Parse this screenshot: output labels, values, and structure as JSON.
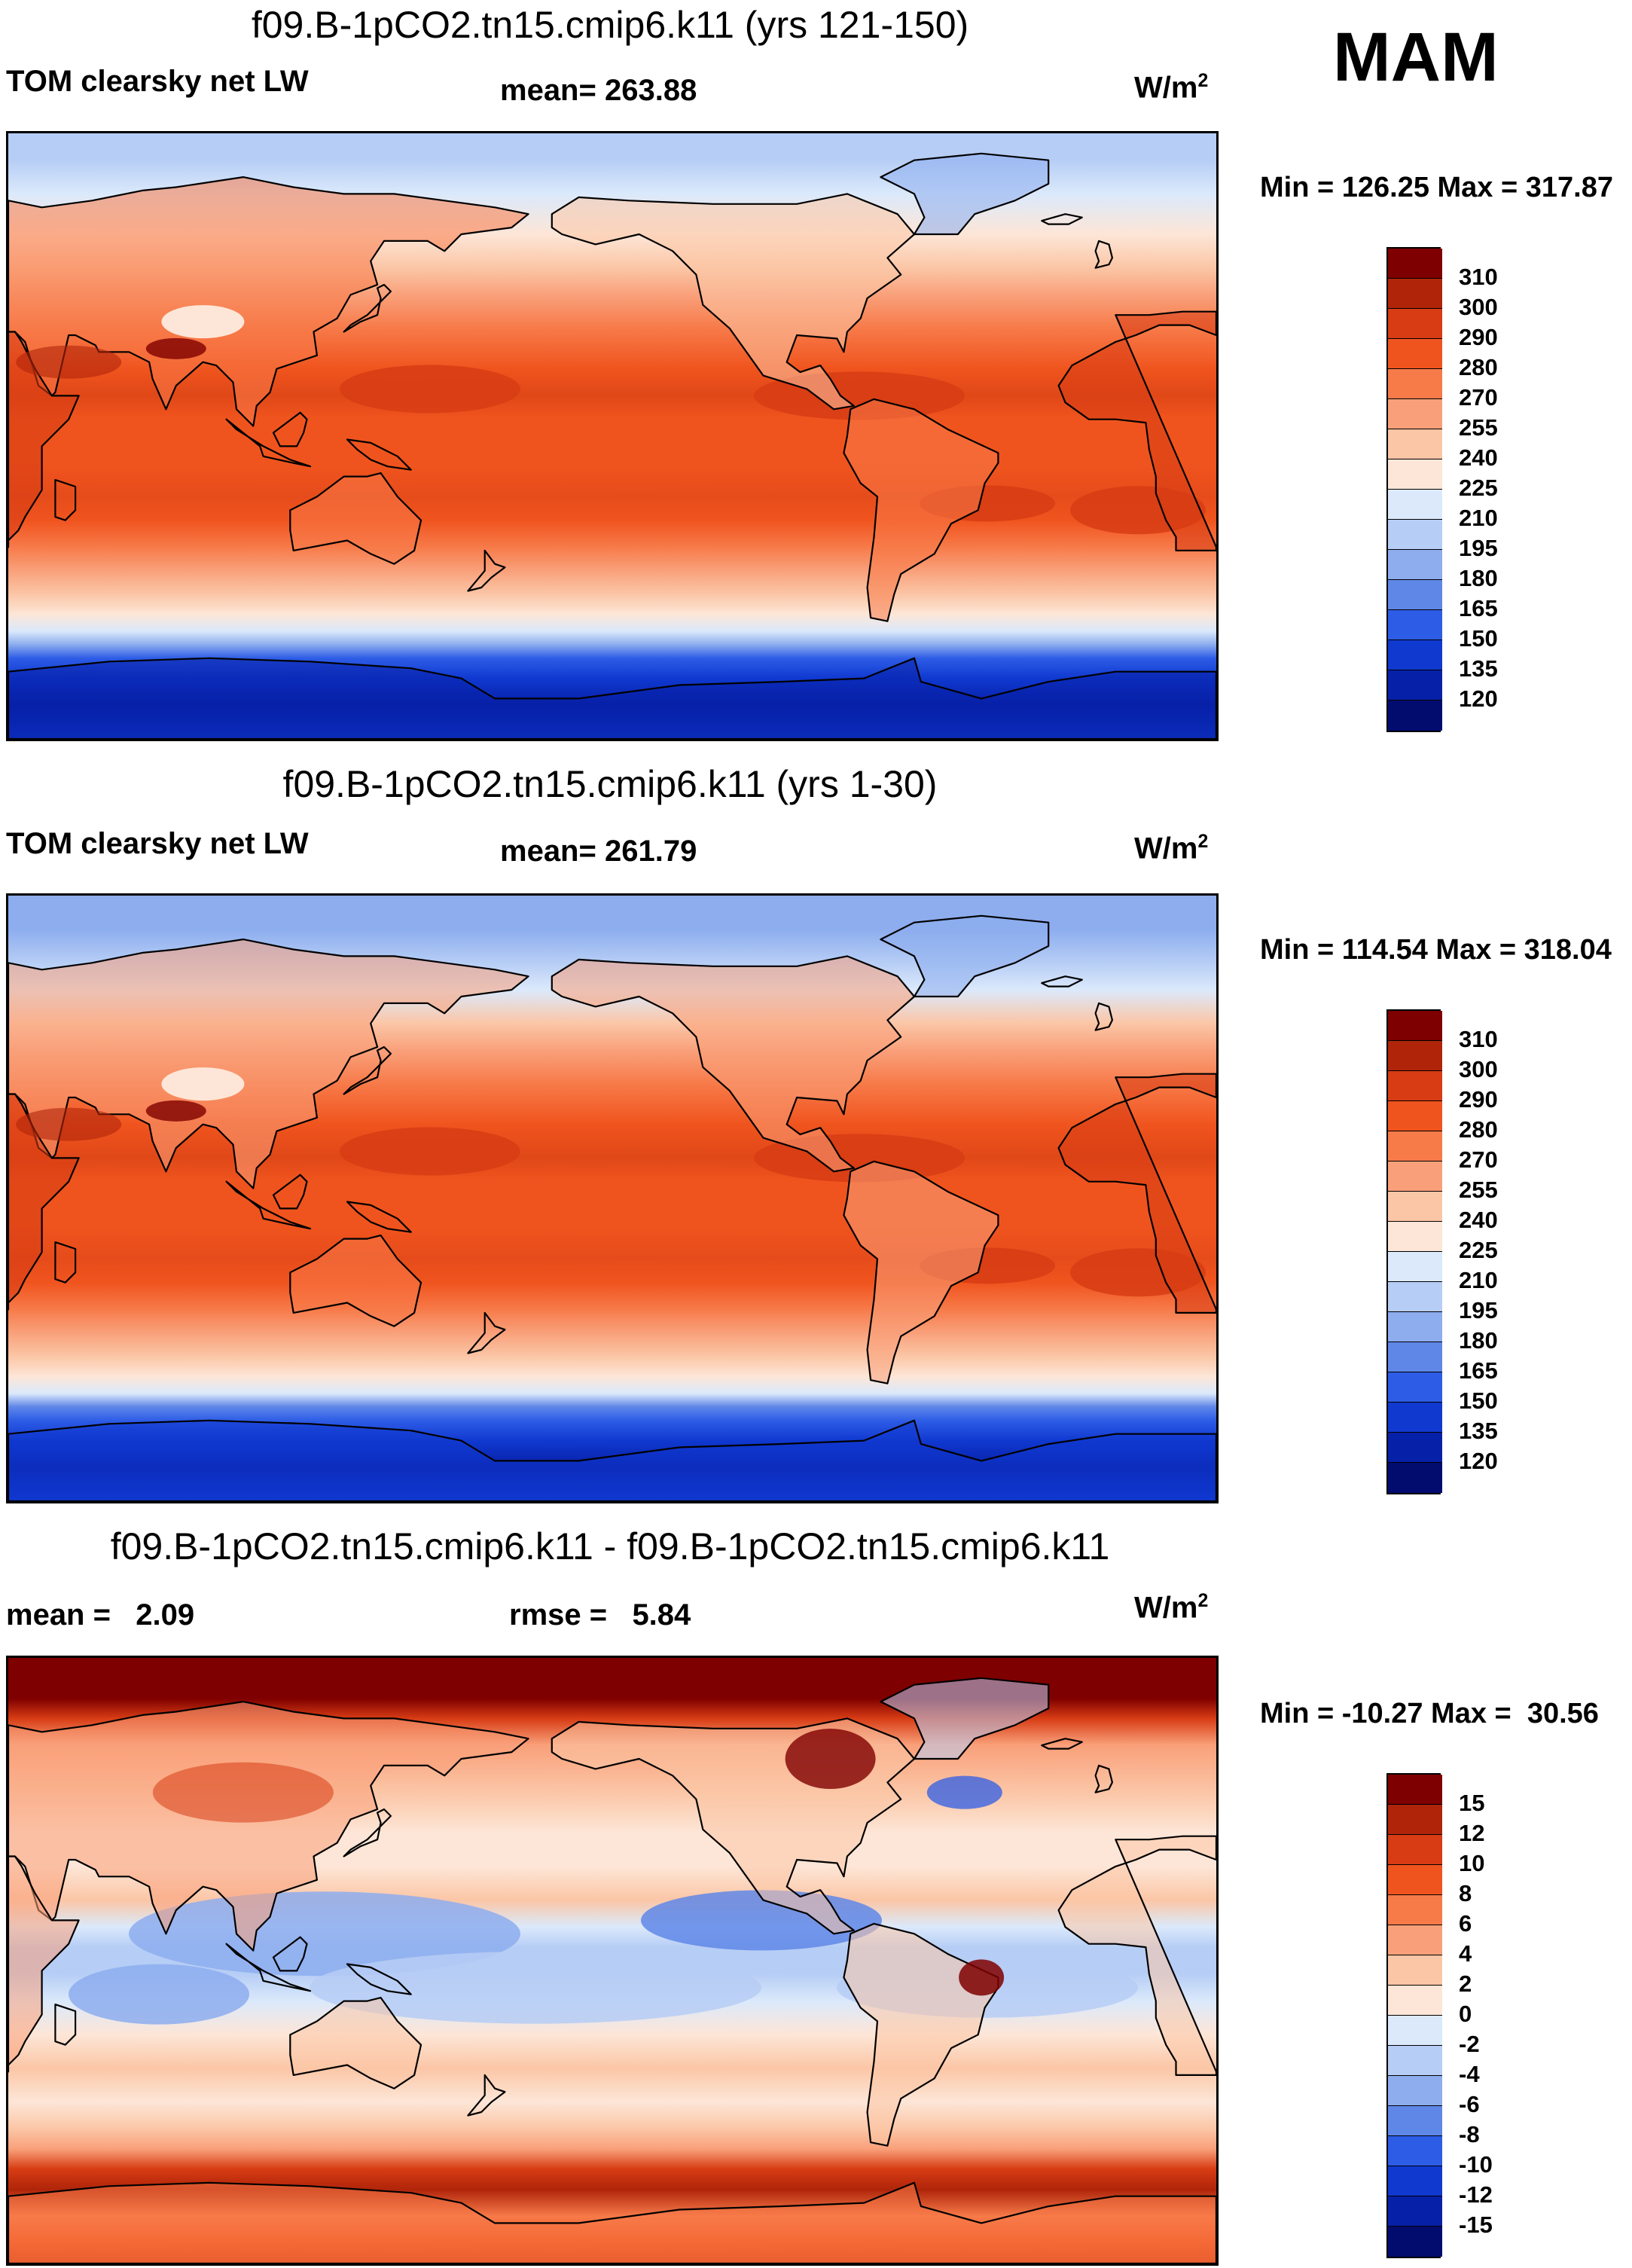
{
  "season": "MAM",
  "panels": [
    {
      "title": "f09.B-1pCO2.tn15.cmip6.k11 (yrs 121-150)",
      "left_label": "TOM clearsky net LW",
      "center_label": "mean= 263.88",
      "units": "W/m",
      "units_sup": "2",
      "minmax": "Min = 126.25 Max = 317.87",
      "colorbar": {
        "labels": [
          "310",
          "300",
          "290",
          "280",
          "270",
          "255",
          "240",
          "225",
          "210",
          "195",
          "180",
          "165",
          "150",
          "135",
          "120"
        ],
        "colors": [
          "#7f0000",
          "#b0250a",
          "#d73c14",
          "#f0541e",
          "#f77a49",
          "#f9a07a",
          "#fbc6a6",
          "#fde6d7",
          "#dbe9fb",
          "#b6cdf5",
          "#8dadee",
          "#5f87e8",
          "#2d5ce6",
          "#1039d0",
          "#0720a8",
          "#020c6e"
        ]
      },
      "map_type": "absolute"
    },
    {
      "title": "f09.B-1pCO2.tn15.cmip6.k11 (yrs 1-30)",
      "left_label": "TOM clearsky net LW",
      "center_label": "mean= 261.79",
      "units": "W/m",
      "units_sup": "2",
      "minmax": "Min = 114.54 Max = 318.04",
      "colorbar": {
        "labels": [
          "310",
          "300",
          "290",
          "280",
          "270",
          "255",
          "240",
          "225",
          "210",
          "195",
          "180",
          "165",
          "150",
          "135",
          "120"
        ],
        "colors": [
          "#7f0000",
          "#b0250a",
          "#d73c14",
          "#f0541e",
          "#f77a49",
          "#f9a07a",
          "#fbc6a6",
          "#fde6d7",
          "#dbe9fb",
          "#b6cdf5",
          "#8dadee",
          "#5f87e8",
          "#2d5ce6",
          "#1039d0",
          "#0720a8",
          "#020c6e"
        ]
      },
      "map_type": "absolute"
    },
    {
      "title": "f09.B-1pCO2.tn15.cmip6.k11 - f09.B-1pCO2.tn15.cmip6.k11",
      "left_label": "mean =   2.09",
      "center_label": "rmse =   5.84",
      "units": "W/m",
      "units_sup": "2",
      "minmax": "Min = -10.27 Max =  30.56",
      "colorbar": {
        "labels": [
          "15",
          "12",
          "10",
          "8",
          "6",
          "4",
          "2",
          "0",
          "-2",
          "-4",
          "-6",
          "-8",
          "-10",
          "-12",
          "-15"
        ],
        "colors": [
          "#7f0000",
          "#b0250a",
          "#d73c14",
          "#f0541e",
          "#f77a49",
          "#f9a07a",
          "#fbc6a6",
          "#fde6d7",
          "#dbe9fb",
          "#b6cdf5",
          "#8dadee",
          "#5f87e8",
          "#2d5ce6",
          "#1039d0",
          "#0720a8",
          "#020c6e"
        ]
      },
      "map_type": "difference"
    }
  ]
}
